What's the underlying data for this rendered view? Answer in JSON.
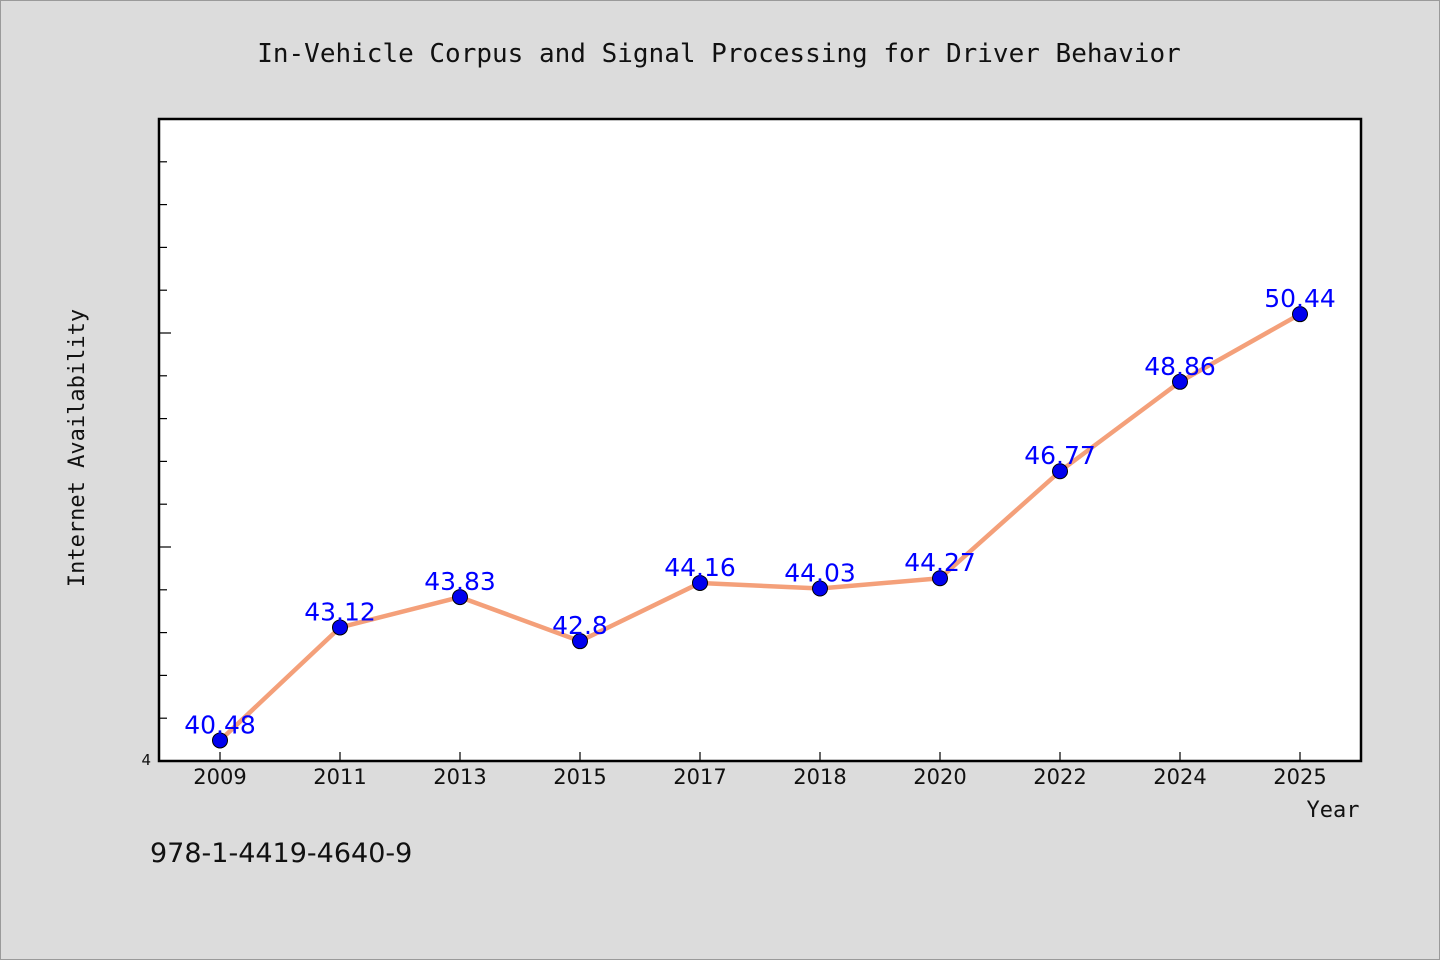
{
  "chart_data": {
    "type": "line",
    "title": "In-Vehicle Corpus and Signal Processing for Driver Behavior",
    "xlabel": "Year",
    "ylabel": "Internet Availability",
    "categories": [
      "2009",
      "2011",
      "2013",
      "2015",
      "2017",
      "2018",
      "2020",
      "2022",
      "2024",
      "2025"
    ],
    "series": [
      {
        "values": [
          40.48,
          43.12,
          43.83,
          42.8,
          44.16,
          44.03,
          44.27,
          46.77,
          48.86,
          50.44
        ],
        "labels": [
          "40.48",
          "43.12",
          "43.83",
          "42.8",
          "44.16",
          "44.03",
          "44.27",
          "46.77",
          "48.86",
          "50.44"
        ],
        "line_color": "#f4a07a",
        "marker_color": "#0000ee"
      }
    ],
    "ylim": [
      40,
      55
    ],
    "y_min_tick_label": "4",
    "grid": false,
    "legend": "none",
    "label_color": "#0000ff"
  },
  "footer_text": "978-1-4419-4640-9"
}
